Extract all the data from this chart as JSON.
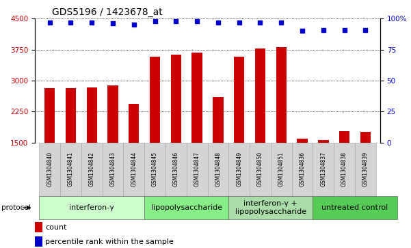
{
  "title": "GDS5196 / 1423678_at",
  "samples": [
    "GSM1304840",
    "GSM1304841",
    "GSM1304842",
    "GSM1304843",
    "GSM1304844",
    "GSM1304845",
    "GSM1304846",
    "GSM1304847",
    "GSM1304848",
    "GSM1304849",
    "GSM1304850",
    "GSM1304851",
    "GSM1304836",
    "GSM1304837",
    "GSM1304838",
    "GSM1304839"
  ],
  "counts": [
    2820,
    2820,
    2840,
    2890,
    2430,
    3580,
    3620,
    3680,
    2600,
    3570,
    3780,
    3810,
    1590,
    1560,
    1780,
    1760
  ],
  "percentiles": [
    97,
    97,
    97,
    96,
    95,
    98,
    98,
    98,
    97,
    97,
    97,
    97,
    90,
    91,
    91,
    91
  ],
  "groups": [
    {
      "label": "interferon-γ",
      "start": 0,
      "end": 5,
      "color": "#ccffcc"
    },
    {
      "label": "lipopolysaccharide",
      "start": 5,
      "end": 9,
      "color": "#88ee88"
    },
    {
      "label": "interferon-γ +\nlipopolysaccharide",
      "start": 9,
      "end": 13,
      "color": "#aaddaa"
    },
    {
      "label": "untreated control",
      "start": 13,
      "end": 17,
      "color": "#55cc55"
    }
  ],
  "ylim_left": [
    1500,
    4500
  ],
  "ylim_right": [
    0,
    100
  ],
  "yticks_left": [
    1500,
    2250,
    3000,
    3750,
    4500
  ],
  "yticks_right": [
    0,
    25,
    50,
    75,
    100
  ],
  "bar_color": "#cc0000",
  "dot_color": "#0000cc",
  "bar_width": 0.5,
  "bg_color": "#ffffff",
  "grid_color": "#000000",
  "tick_color_left": "#cc0000",
  "tick_color_right": "#0000cc",
  "title_fontsize": 10,
  "tick_fontsize": 7.5,
  "sample_fontsize": 5.5,
  "group_fontsize": 8,
  "legend_fontsize": 8
}
